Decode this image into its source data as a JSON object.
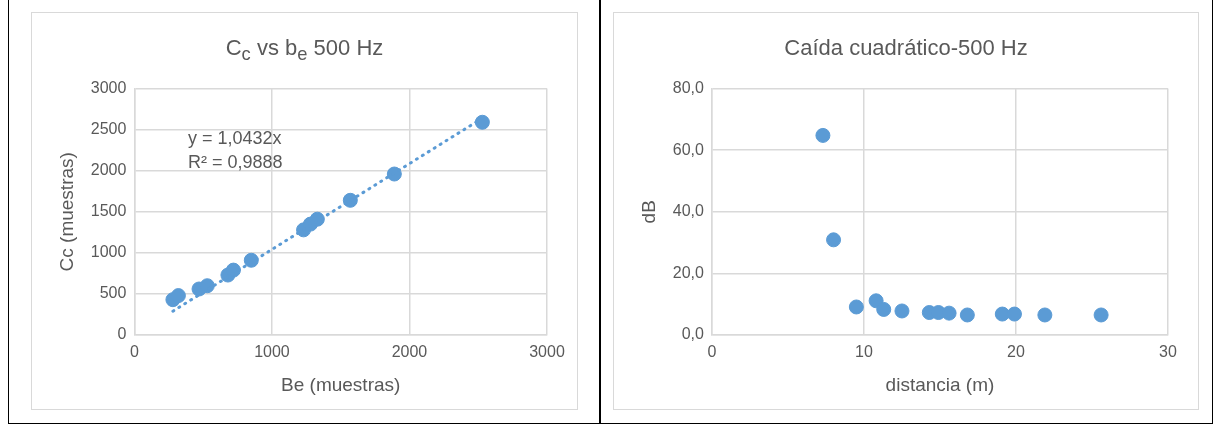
{
  "chart_data": [
    {
      "type": "scatter",
      "title": "C$_{c}$ vs b$_{e}$ 500 Hz",
      "xlabel": "Be (muestras)",
      "ylabel": "Cc (muestras)",
      "xlim": [
        0,
        3000
      ],
      "ylim": [
        0,
        3000
      ],
      "xticks": [
        0,
        1000,
        2000,
        3000
      ],
      "yticks": [
        0,
        500,
        1000,
        1500,
        2000,
        2500,
        3000
      ],
      "grid": true,
      "marker": "circle",
      "legend": false,
      "annotations": [
        "y = 1,0432x",
        "R² = 0,9888"
      ],
      "series": [
        {
          "color": "#5b9bd5",
          "x": [
            280,
            320,
            470,
            530,
            680,
            720,
            850,
            1230,
            1280,
            1330,
            1570,
            1890,
            2530
          ],
          "values": [
            430,
            480,
            560,
            600,
            730,
            790,
            910,
            1280,
            1350,
            1410,
            1640,
            1960,
            2590
          ]
        },
        {
          "type": "line",
          "color": "#5b9bd5",
          "line_style": "dotted",
          "marker": "none",
          "x": [
            280,
            2530
          ],
          "values": [
            290,
            2640
          ]
        }
      ]
    },
    {
      "type": "scatter",
      "title": "Caída cuadrático-500 Hz",
      "xlabel": "distancia (m)",
      "ylabel": "dB",
      "xlim": [
        0,
        30
      ],
      "ylim": [
        0,
        80
      ],
      "xticks": [
        0,
        10,
        20,
        30
      ],
      "yticks": [
        {
          "value": 0,
          "label": "0,0"
        },
        {
          "value": 20,
          "label": "20,0"
        },
        {
          "value": 40,
          "label": "40,0"
        },
        {
          "value": 60,
          "label": "60,0"
        },
        {
          "value": 80,
          "label": "80,0"
        }
      ],
      "grid": true,
      "marker": "circle",
      "legend": false,
      "series": [
        {
          "color": "#5b9bd5",
          "x": [
            7.3,
            8.0,
            9.5,
            10.8,
            11.3,
            12.5,
            14.3,
            14.9,
            15.6,
            16.8,
            19.1,
            19.9,
            21.9,
            25.6
          ],
          "values": [
            64.8,
            30.9,
            9.1,
            11.1,
            8.3,
            7.8,
            7.3,
            7.3,
            7.1,
            6.5,
            6.8,
            6.8,
            6.5,
            6.5
          ]
        }
      ]
    }
  ]
}
